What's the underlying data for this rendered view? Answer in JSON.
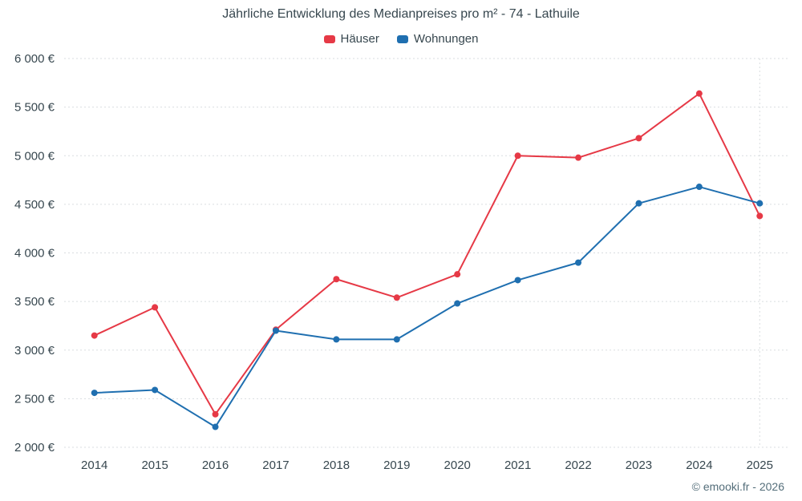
{
  "title": "Jährliche Entwicklung des Medianpreises pro m² - 74 - Lathuile",
  "attribution": "© emooki.fr - 2026",
  "chart_data": {
    "type": "line",
    "title": "Jährliche Entwicklung des Medianpreises pro m² - 74 - Lathuile",
    "categories": [
      "2014",
      "2015",
      "2016",
      "2017",
      "2018",
      "2019",
      "2020",
      "2021",
      "2022",
      "2023",
      "2024",
      "2025"
    ],
    "series": [
      {
        "name": "Häuser",
        "color": "#e63946",
        "values": [
          3150,
          3440,
          2340,
          3210,
          3730,
          3540,
          3780,
          5000,
          4980,
          5180,
          5640,
          4380
        ]
      },
      {
        "name": "Wohnungen",
        "color": "#1f6fb0",
        "values": [
          2560,
          2590,
          2210,
          3200,
          3110,
          3110,
          3480,
          3720,
          3900,
          4510,
          4680,
          4510
        ]
      }
    ],
    "xlabel": "",
    "ylabel": "",
    "ylim": [
      2000,
      6000
    ],
    "ytick_step": 500,
    "ytick_suffix": " €",
    "grid": true,
    "legend_position": "top",
    "vline_category": "2025"
  }
}
